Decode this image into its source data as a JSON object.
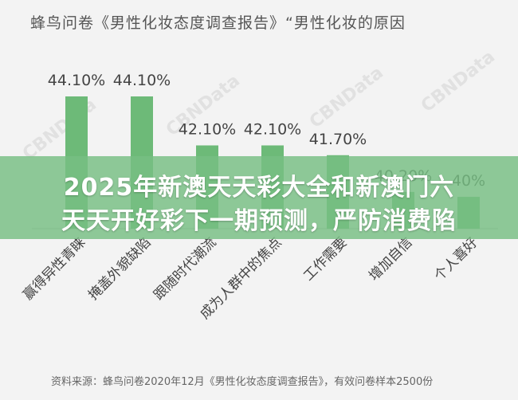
{
  "header": {
    "title": "蜂鸟问卷《男性化妆态度调查报告》“男性化妆的原因"
  },
  "banner": {
    "line1": "2025年新澳天天彩大全和新澳门六",
    "line2": "天天开好彩下一期预测，严防消费陷"
  },
  "footer": {
    "source": "资料来源：蜂鸟问卷2020年12月《男性化妆态度调查报告》，有效问卷样本2500份"
  },
  "watermark": "CBNData",
  "colors": {
    "bar": "#6dba78",
    "background": "#f3f3f3",
    "text": "#444444"
  },
  "chart_data": {
    "type": "bar",
    "categories": [
      "赢得异性青睐",
      "掩盖外貌缺陷",
      "跟随时代潮流",
      "成为人群中的焦点",
      "工作需要",
      "增加自信",
      "个人喜好"
    ],
    "values": [
      44.1,
      44.1,
      42.1,
      42.1,
      41.7,
      40.2,
      40.0
    ],
    "value_labels": [
      "44.10%",
      "44.10%",
      "42.10%",
      "42.10%",
      "41.70%",
      "40.20%",
      "40%"
    ],
    "ylim": [
      38.7,
      44.1
    ]
  }
}
